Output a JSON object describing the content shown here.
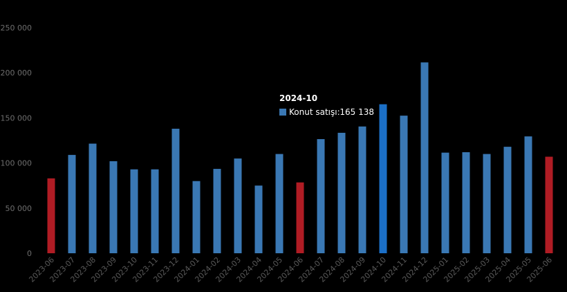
{
  "chart_data": {
    "type": "bar",
    "categories": [
      "2023-06",
      "2023-07",
      "2023-08",
      "2023-09",
      "2023-10",
      "2023-11",
      "2023-12",
      "2024-01",
      "2024-02",
      "2024-03",
      "2024-04",
      "2024-05",
      "2024-06",
      "2024-07",
      "2024-08",
      "2024-09",
      "2024-10",
      "2024-11",
      "2024-12",
      "2025-01",
      "2025-02",
      "2025-03",
      "2025-04",
      "2025-05",
      "2025-06"
    ],
    "series": [
      {
        "name": "Konut satışı",
        "values": [
          83000,
          109000,
          121500,
          102000,
          93000,
          93000,
          138000,
          80000,
          93500,
          105000,
          75000,
          110000,
          78500,
          126500,
          133500,
          140500,
          165138,
          152500,
          211500,
          111500,
          112000,
          110000,
          118000,
          129500,
          107000
        ]
      }
    ],
    "ylim": [
      0,
      250000
    ],
    "yticks": [
      0,
      50000,
      100000,
      150000,
      200000,
      250000
    ],
    "ytick_labels": [
      "0",
      "50 000",
      "100 000",
      "150 000",
      "200 000",
      "250 000"
    ],
    "grid": false,
    "colors": {
      "default": "#3a78b4",
      "highlight": "#b01c24",
      "hover": "#1b6fc6",
      "background": "#000000"
    },
    "highlighted_categories": [
      "2023-06",
      "2024-06",
      "2025-06"
    ],
    "tooltip": {
      "category": "2024-10",
      "title": "2024-10",
      "series_label": "Konut satışı:",
      "value_text": "165 138"
    }
  }
}
